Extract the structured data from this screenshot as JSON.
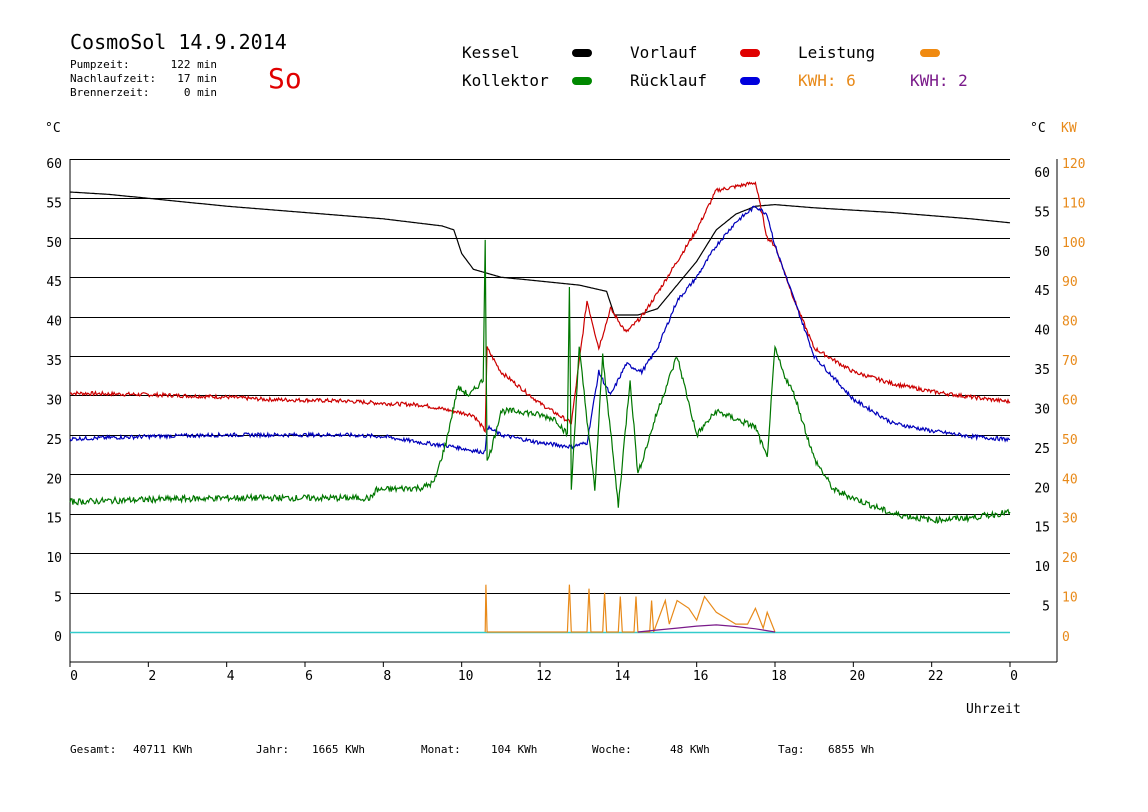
{
  "header": {
    "title": "CosmoSol 14.9.2014",
    "day": "So",
    "stats": [
      {
        "label": "Pumpzeit:",
        "value": "122 min"
      },
      {
        "label": "Nachlaufzeit:",
        "value": "17 min"
      },
      {
        "label": "Brennerzeit:",
        "value": "0 min"
      }
    ]
  },
  "legend": {
    "kessel": "Kessel",
    "vorlauf": "Vorlauf",
    "leistung": "Leistung",
    "kollektor": "Kollektor",
    "ruecklauf": "Rücklauf",
    "kwh1": "KWH: 6",
    "kwh2": "KWH: 2"
  },
  "axes": {
    "left_unit": "°C",
    "right_unit_c": "°C",
    "right_unit_kw": "KW",
    "x_label": "Uhrzeit"
  },
  "footer": [
    {
      "label": "Gesamt:",
      "value": "40711 KWh"
    },
    {
      "label": "Jahr:",
      "value": "1665 KWh"
    },
    {
      "label": "Monat:",
      "value": "104 KWh"
    },
    {
      "label": "Woche:",
      "value": "48 KWh"
    },
    {
      "label": "Tag:",
      "value": "6855 Wh"
    }
  ],
  "colors": {
    "kessel": "#000000",
    "vorlauf": "#cc0000",
    "ruecklauf": "#0000bb",
    "kollektor": "#007700",
    "leistung": "#e88a1a",
    "kwh2": "#7a1a8a",
    "baseline": "#33cccc"
  },
  "chart_data": {
    "type": "line",
    "xlabel": "Uhrzeit",
    "ylabel": "°C",
    "y2label": "KW",
    "x_ticks": [
      "0",
      "2",
      "4",
      "6",
      "8",
      "10",
      "12",
      "14",
      "16",
      "18",
      "20",
      "22",
      "0"
    ],
    "xlim": [
      0,
      24
    ],
    "ylim": [
      -3,
      62
    ],
    "y_ticks_left": [
      0,
      5,
      10,
      15,
      20,
      25,
      30,
      35,
      40,
      45,
      50,
      55,
      60
    ],
    "y_ticks_right_c": [
      5,
      10,
      15,
      20,
      25,
      30,
      35,
      40,
      45,
      50,
      55,
      60
    ],
    "y_ticks_right_kw": [
      0,
      10,
      20,
      30,
      40,
      50,
      60,
      70,
      80,
      90,
      100,
      110,
      120
    ],
    "grid": true,
    "series": [
      {
        "name": "Kessel",
        "key": "kessel",
        "x": [
          0,
          1,
          2,
          3,
          4,
          5,
          6,
          7,
          8,
          9,
          9.5,
          9.8,
          10.0,
          10.3,
          11,
          12,
          13,
          13.7,
          13.9,
          14.5,
          15,
          15.5,
          16,
          16.5,
          17,
          17.5,
          18,
          18.5,
          19,
          20,
          21,
          22,
          23,
          24
        ],
        "y": [
          55.8,
          55.5,
          55,
          54.5,
          54,
          53.6,
          53.2,
          52.8,
          52.4,
          51.8,
          51.5,
          51,
          48,
          46,
          45,
          44.5,
          44,
          43.2,
          40.2,
          40.2,
          41,
          44,
          47,
          51,
          53,
          54,
          54.2,
          54,
          53.8,
          53.5,
          53.2,
          52.8,
          52.4,
          51.9
        ]
      },
      {
        "name": "Vorlauf",
        "key": "vorlauf",
        "x": [
          0,
          2,
          4,
          5,
          6,
          7,
          8,
          9,
          9.8,
          10.3,
          10.6,
          10.65,
          11,
          12,
          12.8,
          13.2,
          13.5,
          13.8,
          14.2,
          14.6,
          15,
          15.5,
          16,
          16.5,
          17,
          17.5,
          17.8,
          18,
          18.5,
          19,
          20,
          21,
          22,
          23,
          24
        ],
        "y": [
          30.3,
          30.1,
          29.8,
          29.5,
          29.4,
          29.3,
          29,
          28.8,
          28,
          27.5,
          25.5,
          36,
          33,
          29,
          26.5,
          42,
          36,
          41,
          38,
          40,
          43,
          47,
          51,
          56,
          56.5,
          57,
          50,
          49,
          42,
          36,
          33,
          31.5,
          30.5,
          29.8,
          29.2
        ],
        "note": "noisy"
      },
      {
        "name": "Rücklauf",
        "key": "ruecklauf",
        "x": [
          0,
          2,
          4,
          6,
          7,
          8,
          9,
          9.8,
          10.3,
          10.6,
          10.65,
          11,
          12,
          12.8,
          13.2,
          13.5,
          13.8,
          14.2,
          14.6,
          15,
          15.5,
          16,
          16.5,
          17,
          17.5,
          17.8,
          18,
          18.5,
          19,
          20,
          21,
          22,
          23,
          24
        ],
        "y": [
          24.5,
          24.8,
          25,
          25,
          25,
          24.8,
          24,
          23.5,
          23,
          22.8,
          26,
          25,
          24,
          23.5,
          24,
          33,
          30,
          34,
          33,
          36,
          42,
          45,
          49,
          52,
          54,
          53,
          49,
          42,
          35,
          29.5,
          26.5,
          25.5,
          24.8,
          24.4
        ],
        "note": "noisy"
      },
      {
        "name": "Kollektor",
        "key": "kollektor",
        "x": [
          0,
          2,
          4,
          6,
          7,
          7.7,
          7.8,
          8.5,
          9,
          9.3,
          9.6,
          9.9,
          10.2,
          10.55,
          10.6,
          10.65,
          10.8,
          11,
          11.5,
          12,
          12.4,
          12.7,
          12.75,
          12.8,
          13,
          13.4,
          13.6,
          14,
          14.3,
          14.5,
          15,
          15.5,
          16,
          16.5,
          17,
          17.5,
          17.8,
          18,
          18.2,
          18.5,
          19,
          19.5,
          20,
          20.5,
          21,
          22,
          23,
          24
        ],
        "y": [
          16.5,
          16.8,
          17,
          17,
          17,
          17,
          18,
          18.2,
          18.3,
          19,
          24,
          31,
          30,
          32,
          50,
          21.5,
          24,
          28,
          28,
          27.5,
          27,
          25,
          44,
          18,
          36,
          18,
          35,
          16,
          32,
          20,
          28,
          35,
          25,
          28,
          27,
          26,
          22,
          36,
          33,
          30,
          22,
          18,
          17,
          16,
          15,
          14.2,
          14.5,
          15.2
        ],
        "note": "noisy"
      },
      {
        "name": "Leistung",
        "key": "leistung",
        "axis": "KW",
        "x": [
          10.6,
          10.62,
          10.65,
          12.7,
          12.75,
          12.8,
          13.2,
          13.25,
          13.3,
          13.6,
          13.65,
          13.7,
          14,
          14.05,
          14.1,
          14.4,
          14.45,
          14.5,
          14.8,
          14.85,
          14.9,
          15.2,
          15.3,
          15.5,
          15.8,
          16,
          16.2,
          16.5,
          17,
          17.3,
          17.5,
          17.7,
          17.8,
          18
        ],
        "y": [
          0,
          12,
          0,
          0,
          12,
          0,
          0,
          11,
          0,
          0,
          10,
          0,
          0,
          9,
          0,
          0,
          9,
          0,
          0,
          8,
          0,
          8,
          2,
          8,
          6,
          3,
          9,
          5,
          2,
          2,
          6,
          1,
          5,
          0
        ]
      },
      {
        "name": "KWH: 2",
        "key": "kwh2",
        "axis": "KW",
        "x": [
          14.5,
          15,
          15.5,
          16,
          16.5,
          17,
          17.5,
          18
        ],
        "y": [
          0,
          0.5,
          1,
          1.5,
          1.8,
          1.4,
          0.8,
          0
        ]
      }
    ]
  }
}
